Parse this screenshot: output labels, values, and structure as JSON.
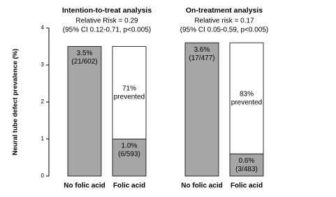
{
  "chart_data": {
    "type": "bar",
    "ylabel": "Neural tube defect prevalence (%)",
    "ylim": [
      0,
      4
    ],
    "yticks": [
      0,
      1,
      2,
      3,
      4
    ],
    "color": "#a6a6a6",
    "prevented_color": "#ffffff",
    "groups": [
      {
        "title": "Intention-to-treat analysis",
        "stats": [
          "Relative Risk = 0.29",
          "(95% CI 0.12-0.71, p<0.005)"
        ],
        "bars": [
          {
            "category": "No folic acid",
            "value": 3.5,
            "value_label": "3.5%",
            "count": "(21/602)"
          },
          {
            "category": "Folic acid",
            "value": 1.0,
            "value_label": "1.0%",
            "count": "(6/593)",
            "prevented": 2.5,
            "prevented_label": [
              "71%",
              "prevented"
            ]
          }
        ]
      },
      {
        "title": "On-treatment analysis",
        "stats": [
          "Relative risk = 0.17",
          "(95% CI 0.05-0.59, p<0.005)"
        ],
        "bars": [
          {
            "category": "No folic acid",
            "value": 3.6,
            "value_label": "3.6%",
            "count": "(17/477)"
          },
          {
            "category": "Folic acid",
            "value": 0.6,
            "value_label": "0.6%",
            "count": "(3/483)",
            "prevented": 3.0,
            "prevented_label": [
              "83%",
              "prevented"
            ]
          }
        ]
      }
    ]
  }
}
